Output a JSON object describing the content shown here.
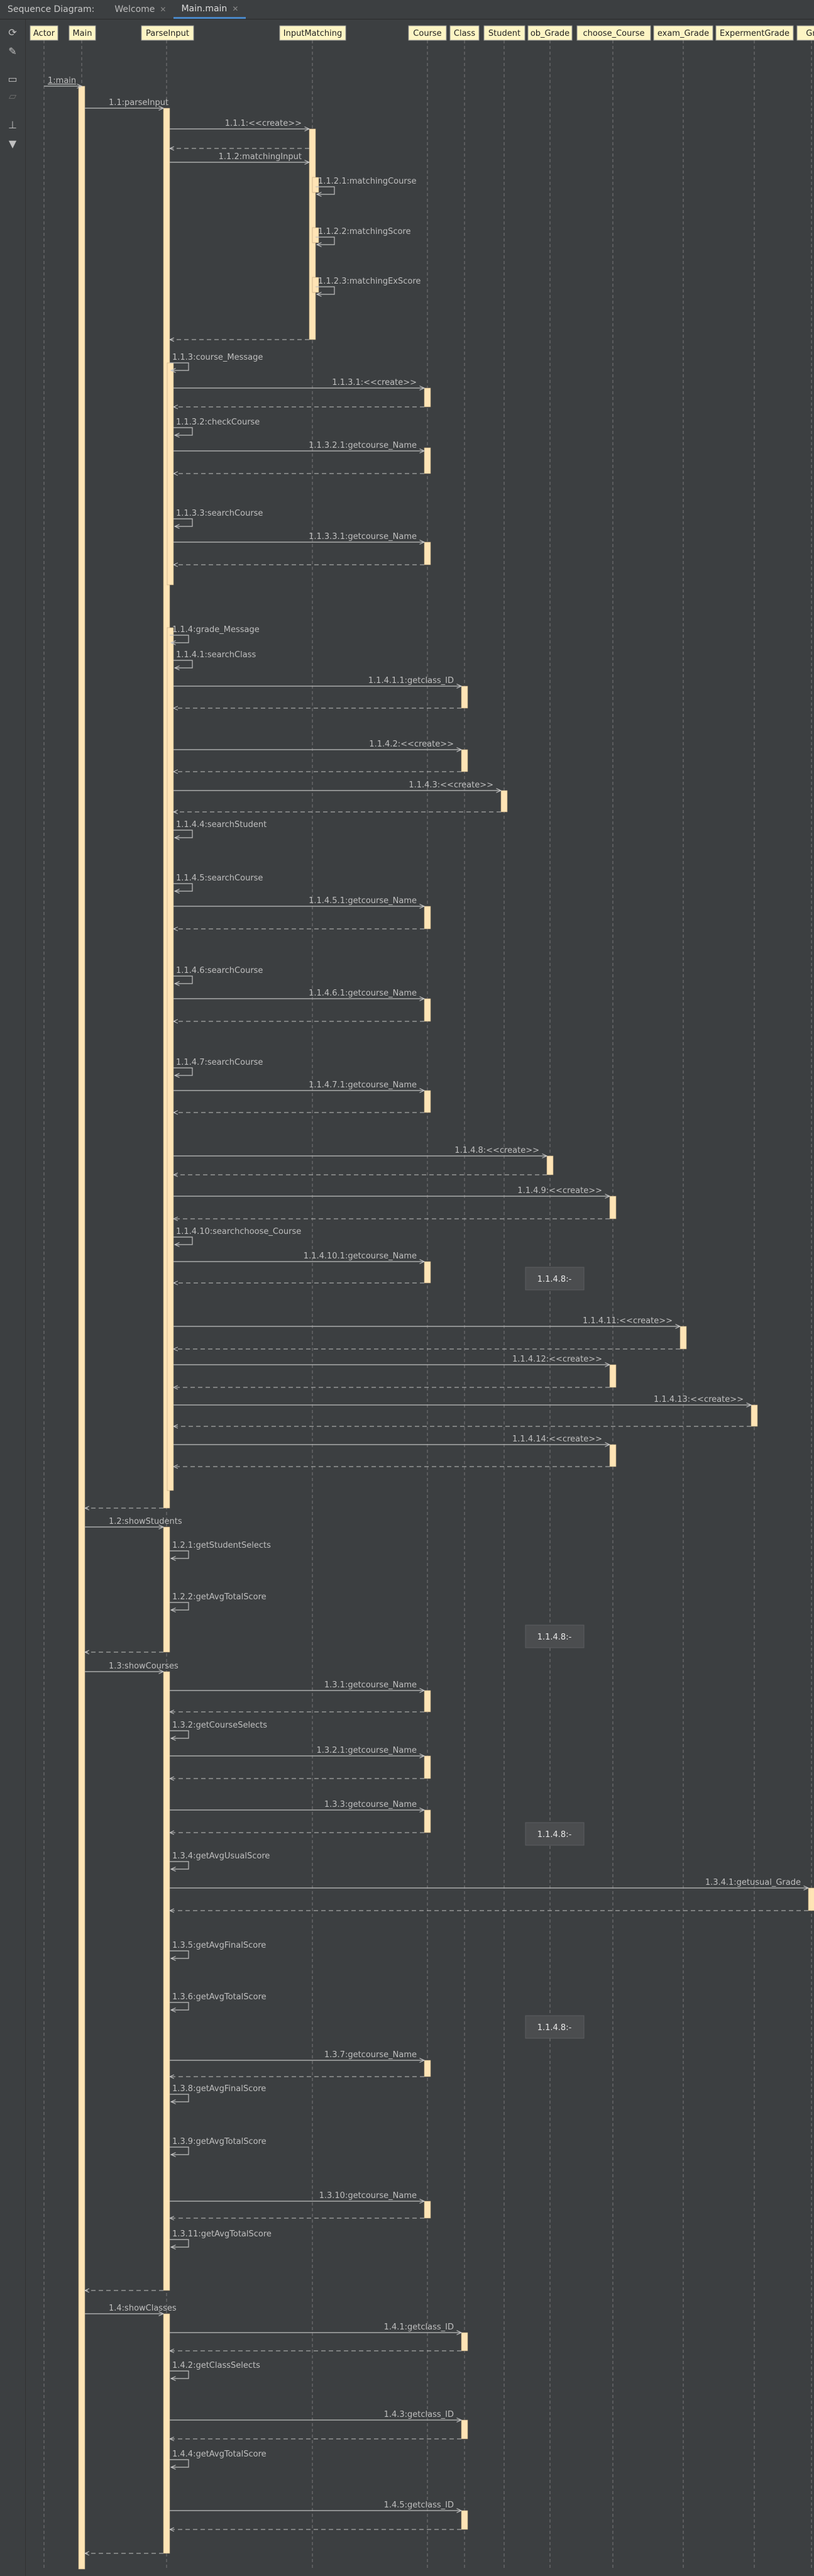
{
  "window": {
    "title": "Sequence Diagram:",
    "tabs": [
      {
        "label": "Welcome"
      },
      {
        "label": "Main.main"
      }
    ]
  },
  "toolbar": [
    "refresh-icon",
    "wrench-icon",
    "save-icon",
    "folder-icon",
    "export-icon",
    "filter-icon"
  ],
  "colors": {
    "background": "#3c3f41",
    "lifeline_box": "#fdf5c4",
    "activation": "#ffe4b5",
    "line": "#c0c0c0",
    "note_box": "#4b4d4f"
  },
  "participants": [
    {
      "id": "actor",
      "label": "Actor"
    },
    {
      "id": "main",
      "label": "Main"
    },
    {
      "id": "parse",
      "label": "ParseInput"
    },
    {
      "id": "inputm",
      "label": "InputMatching"
    },
    {
      "id": "course",
      "label": "Course"
    },
    {
      "id": "class",
      "label": "Class"
    },
    {
      "id": "student",
      "label": "Student"
    },
    {
      "id": "obgrade",
      "label": "ob_Grade"
    },
    {
      "id": "choose",
      "label": "choose_Course"
    },
    {
      "id": "exam",
      "label": "exam_Grade"
    },
    {
      "id": "exper",
      "label": "ExpermentGrade"
    },
    {
      "id": "gra",
      "label": "Gra"
    }
  ],
  "messages": [
    {
      "label": "1:main"
    },
    {
      "label": "1.1:parseInput"
    },
    {
      "label": "1.1.1:<<create>>"
    },
    {
      "label": "1.1.2:matchingInput"
    },
    {
      "label": "1.1.2.1:matchingCourse"
    },
    {
      "label": "1.1.2.2:matchingScore"
    },
    {
      "label": "1.1.2.3:matchingExScore"
    },
    {
      "label": "1.1.3:course_Message"
    },
    {
      "label": "1.1.3.1:<<create>>"
    },
    {
      "label": "1.1.3.2:checkCourse"
    },
    {
      "label": "1.1.3.2.1:getcourse_Name"
    },
    {
      "label": "1.1.3.3:searchCourse"
    },
    {
      "label": "1.1.3.3.1:getcourse_Name"
    },
    {
      "label": "1.1.4:grade_Message"
    },
    {
      "label": "1.1.4.1:searchClass"
    },
    {
      "label": "1.1.4.1.1:getclass_ID"
    },
    {
      "label": "1.1.4.2:<<create>>"
    },
    {
      "label": "1.1.4.3:<<create>>"
    },
    {
      "label": "1.1.4.4:searchStudent"
    },
    {
      "label": "1.1.4.5:searchCourse"
    },
    {
      "label": "1.1.4.5.1:getcourse_Name"
    },
    {
      "label": "1.1.4.6:searchCourse"
    },
    {
      "label": "1.1.4.6.1:getcourse_Name"
    },
    {
      "label": "1.1.4.7:searchCourse"
    },
    {
      "label": "1.1.4.7.1:getcourse_Name"
    },
    {
      "label": "1.1.4.8:<<create>>"
    },
    {
      "label": "1.1.4.9:<<create>>"
    },
    {
      "label": "1.1.4.10:searchchoose_Course"
    },
    {
      "label": "1.1.4.10.1:getcourse_Name"
    },
    {
      "label": "1.1.4.11:<<create>>"
    },
    {
      "label": "1.1.4.12:<<create>>"
    },
    {
      "label": "1.1.4.13:<<create>>"
    },
    {
      "label": "1.1.4.14:<<create>>"
    },
    {
      "label": "1.2:showStudents"
    },
    {
      "label": "1.2.1:getStudentSelects"
    },
    {
      "label": "1.2.2:getAvgTotalScore"
    },
    {
      "label": "1.3:showCourses"
    },
    {
      "label": "1.3.1:getcourse_Name"
    },
    {
      "label": "1.3.2:getCourseSelects"
    },
    {
      "label": "1.3.2.1:getcourse_Name"
    },
    {
      "label": "1.3.3:getcourse_Name"
    },
    {
      "label": "1.3.4:getAvgUsualScore"
    },
    {
      "label": "1.3.4.1:getusual_Grade"
    },
    {
      "label": "1.3.5:getAvgFinalScore"
    },
    {
      "label": "1.3.6:getAvgTotalScore"
    },
    {
      "label": "1.3.7:getcourse_Name"
    },
    {
      "label": "1.3.8:getAvgFinalScore"
    },
    {
      "label": "1.3.9:getAvgTotalScore"
    },
    {
      "label": "1.3.10:getcourse_Name"
    },
    {
      "label": "1.3.11:getAvgTotalScore"
    },
    {
      "label": "1.4:showClasses"
    },
    {
      "label": "1.4.1:getclass_ID"
    },
    {
      "label": "1.4.2:getClassSelects"
    },
    {
      "label": "1.4.3:getclass_ID"
    },
    {
      "label": "1.4.4:getAvgTotalScore"
    },
    {
      "label": "1.4.5:getclass_ID"
    }
  ],
  "notes": [
    "1.1.4.8:-",
    "1.1.4.8:-",
    "1.1.4.8:-",
    "1.1.4.8:-"
  ]
}
